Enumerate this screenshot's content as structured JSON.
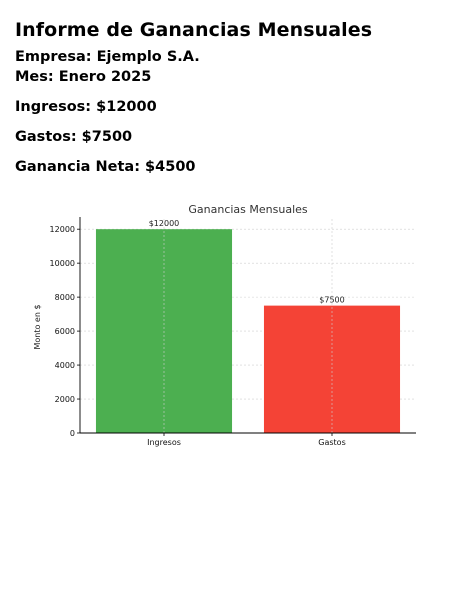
{
  "report": {
    "title": "Informe de Ganancias Mensuales",
    "company_line": "Empresa: Ejemplo S.A.",
    "month_line": "Mes: Enero 2025",
    "income_line": "Ingresos: $12000",
    "expense_line": "Gastos: $7500",
    "net_line": "Ganancia Neta: $4500"
  },
  "chart_data": {
    "type": "bar",
    "title": "Ganancias Mensuales",
    "xlabel": "",
    "ylabel": "Monto en $",
    "categories": [
      "Ingresos",
      "Gastos"
    ],
    "values": [
      12000,
      7500
    ],
    "data_labels": [
      "$12000",
      "$7500"
    ],
    "colors": [
      "#4caf50",
      "#f44336"
    ],
    "ylim": [
      0,
      12600
    ],
    "yticks": [
      0,
      2000,
      4000,
      6000,
      8000,
      10000,
      12000
    ],
    "grid": true,
    "grid_style": "dashed"
  }
}
